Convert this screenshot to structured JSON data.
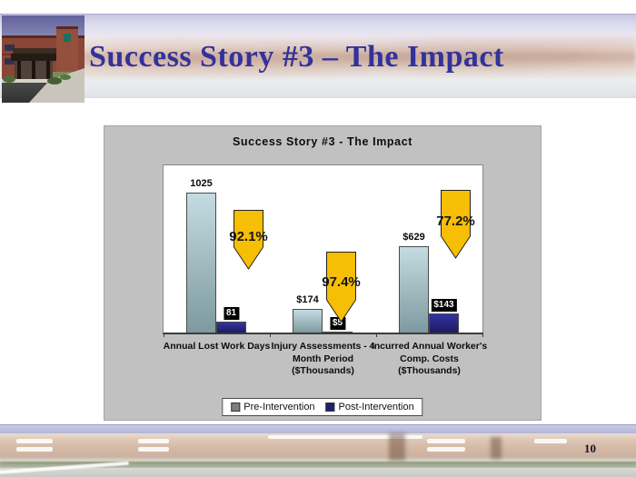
{
  "slide": {
    "title": "Success Story #3 – The Impact",
    "title_color": "#32329A",
    "page_number": "10"
  },
  "chart": {
    "background_color": "#C1C1C1",
    "plot_background": "#FFFFFF"
  },
  "chart_data": {
    "type": "bar",
    "title": "Success Story #3 - The Impact",
    "categories": [
      "Annual Lost Work Days",
      "Injury Assessments - 4\nMonth Period\n($Thousands)",
      "Incurred Annual Worker's\nComp. Costs\n($Thousands)"
    ],
    "series": [
      {
        "name": "Pre-Intervention",
        "swatch": "#7F7F7F",
        "bar_top": "#C4DCE1",
        "bar_bottom": "#7E99A0",
        "values": [
          1025,
          174,
          629
        ],
        "labels": [
          "1025",
          "$174",
          "$629"
        ],
        "label_style": "plain"
      },
      {
        "name": "Post-Intervention",
        "swatch": "#20206E",
        "bar_top": "#3434A4",
        "bar_bottom": "#1C1C60",
        "values": [
          81,
          5,
          143
        ],
        "labels": [
          "81",
          "$5",
          "$143"
        ],
        "label_style": "boxed"
      }
    ],
    "reduction_arrows": {
      "values": [
        "92.1%",
        "97.4%",
        "77.2%"
      ],
      "fill": "#F6BE04",
      "border": "#222222"
    },
    "ylim": [
      0,
      1225
    ],
    "grid": false,
    "legend_position": "bottom"
  }
}
